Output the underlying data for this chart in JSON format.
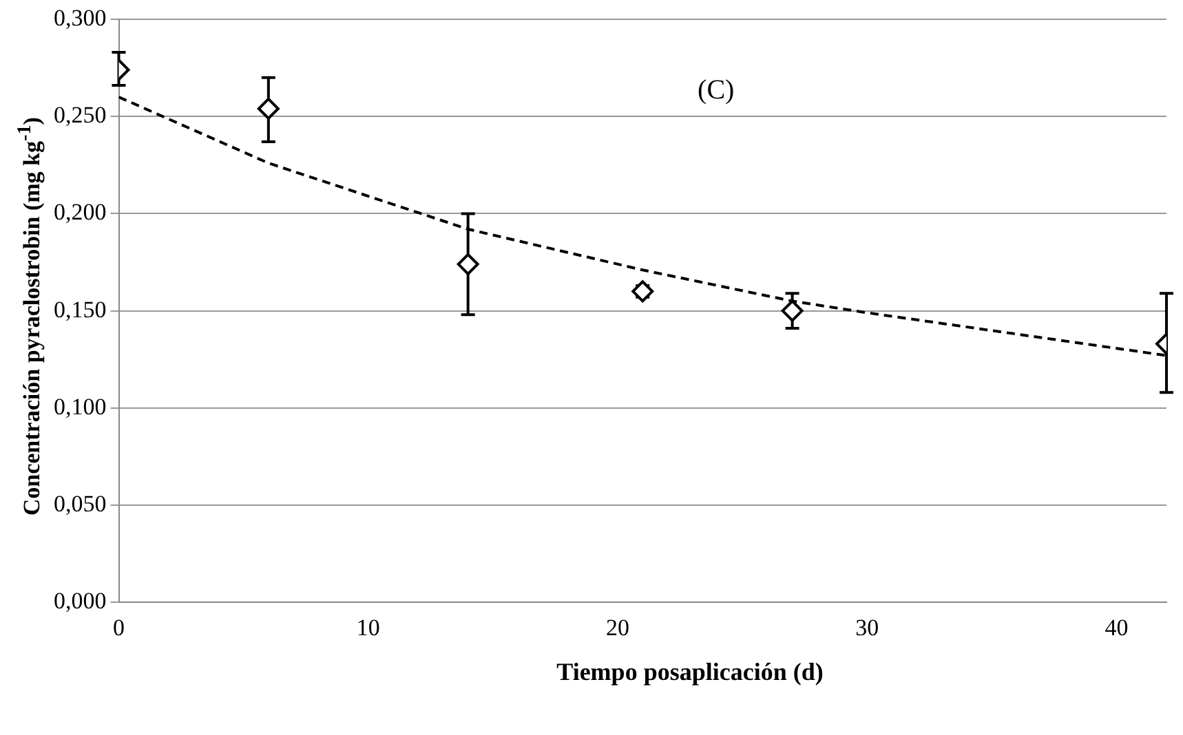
{
  "chart_data": {
    "type": "scatter",
    "xlabel": "Tiempo posaplicación (d)",
    "ylabel": "Concentración pyraclostrobin (mg kg$^{-1}$)",
    "annotations": [
      "(C)"
    ],
    "xlim": [
      0,
      42
    ],
    "xticks": [
      0,
      10,
      20,
      30,
      40
    ],
    "ylim": [
      0,
      0.3
    ],
    "yticks": [
      {
        "value": 0,
        "label": "0,000"
      },
      {
        "value": 0.05,
        "label": "0,050"
      },
      {
        "value": 0.1,
        "label": "0,100"
      },
      {
        "value": 0.15,
        "label": "0,150"
      },
      {
        "value": 0.2,
        "label": "0,200"
      },
      {
        "value": 0.25,
        "label": "0,250"
      },
      {
        "value": 0.3,
        "label": "0,300"
      }
    ],
    "grid": "y",
    "legend": false,
    "series": [
      {
        "color": "#000000",
        "marker": "diamond",
        "x": [
          0,
          6,
          14,
          21,
          27,
          42
        ],
        "values": [
          0.274,
          0.254,
          0.174,
          0.16,
          0.15,
          0.133
        ],
        "errors": [
          [
            0.266,
            0.283
          ],
          [
            0.237,
            0.27
          ],
          [
            0.148,
            0.2
          ],
          [
            0.157,
            0.163
          ],
          [
            0.141,
            0.159
          ],
          [
            0.108,
            0.159
          ]
        ]
      },
      {
        "type": "line",
        "color": "#000000",
        "marker": "none",
        "line_style": "dashed",
        "x": [
          0,
          6,
          14,
          21,
          27,
          30,
          42
        ],
        "values": [
          0.26,
          0.226,
          0.192,
          0.171,
          0.155,
          0.149,
          0.127
        ]
      }
    ]
  }
}
